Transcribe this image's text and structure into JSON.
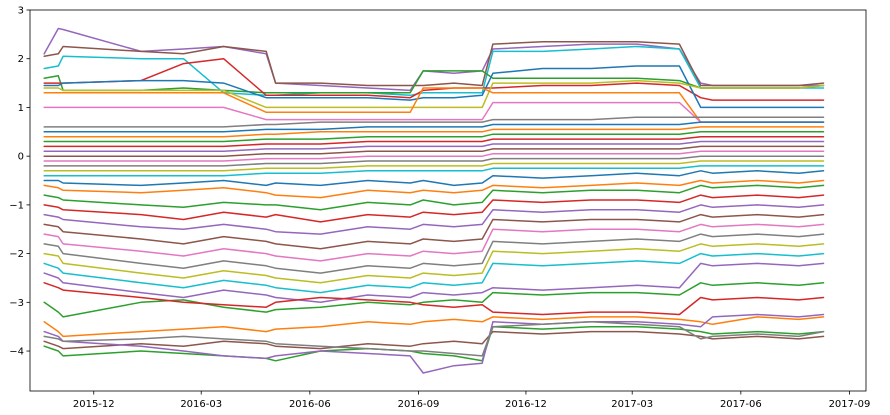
{
  "chart_data": {
    "type": "line",
    "title": "",
    "xlabel": "",
    "ylabel": "",
    "grid": false,
    "legend": "none",
    "x_range": [
      "2015-10-08",
      "2017-09-15"
    ],
    "y_range": [
      -4.82,
      3.0
    ],
    "x_ticks": [
      {
        "date": "2015-12-01",
        "label": "2015-12"
      },
      {
        "date": "2016-03-01",
        "label": "2016-03"
      },
      {
        "date": "2016-06-01",
        "label": "2016-06"
      },
      {
        "date": "2016-09-01",
        "label": "2016-09"
      },
      {
        "date": "2016-12-01",
        "label": "2016-12"
      },
      {
        "date": "2017-03-01",
        "label": "2017-03"
      },
      {
        "date": "2017-06-01",
        "label": "2017-06"
      },
      {
        "date": "2017-09-01",
        "label": "2017-09"
      }
    ],
    "y_ticks": [
      {
        "value": 3,
        "label": "3"
      },
      {
        "value": 2,
        "label": "2"
      },
      {
        "value": 1,
        "label": "1"
      },
      {
        "value": 0,
        "label": "0"
      },
      {
        "value": -1,
        "label": "−1"
      },
      {
        "value": -2,
        "label": "−2"
      },
      {
        "value": -3,
        "label": "−3"
      },
      {
        "value": -4,
        "label": "−4"
      }
    ],
    "x": [
      "2015-10-20",
      "2015-11-01",
      "2015-11-05",
      "2016-01-10",
      "2016-02-15",
      "2016-03-20",
      "2016-04-25",
      "2016-05-03",
      "2016-06-10",
      "2016-07-20",
      "2016-08-25",
      "2016-09-05",
      "2016-10-01",
      "2016-10-25",
      "2016-11-03",
      "2016-12-15",
      "2017-01-25",
      "2017-03-05",
      "2017-04-10",
      "2017-04-28",
      "2017-05-08",
      "2017-06-15",
      "2017-07-20",
      "2017-08-10"
    ],
    "series": [
      {
        "color": "#9467bd",
        "values": [
          2.1,
          2.62,
          2.6,
          2.15,
          2.2,
          2.25,
          2.1,
          1.5,
          1.45,
          1.4,
          1.35,
          1.75,
          1.7,
          1.75,
          2.2,
          2.25,
          2.3,
          2.3,
          2.2,
          1.5,
          1.45,
          1.45,
          1.45,
          1.45
        ]
      },
      {
        "color": "#8c564b",
        "values": [
          2.05,
          2.1,
          2.25,
          2.15,
          2.1,
          2.25,
          2.15,
          1.5,
          1.5,
          1.45,
          1.45,
          1.45,
          1.5,
          1.45,
          2.3,
          2.35,
          2.35,
          2.35,
          2.3,
          1.45,
          1.45,
          1.45,
          1.45,
          1.5
        ]
      },
      {
        "color": "#17becf",
        "values": [
          1.8,
          1.85,
          2.05,
          2.0,
          2.0,
          1.3,
          1.25,
          1.25,
          1.3,
          1.3,
          1.25,
          1.3,
          1.3,
          1.3,
          2.15,
          2.15,
          2.2,
          2.25,
          2.2,
          1.4,
          1.4,
          1.4,
          1.4,
          1.4
        ]
      },
      {
        "color": "#2ca02c",
        "values": [
          1.6,
          1.65,
          1.35,
          1.35,
          1.4,
          1.35,
          1.3,
          1.3,
          1.3,
          1.3,
          1.3,
          1.75,
          1.75,
          1.75,
          1.6,
          1.6,
          1.6,
          1.6,
          1.55,
          1.4,
          1.4,
          1.4,
          1.4,
          1.45
        ]
      },
      {
        "color": "#d62728",
        "values": [
          1.5,
          1.5,
          1.5,
          1.55,
          1.9,
          2.0,
          1.25,
          1.25,
          1.25,
          1.25,
          1.2,
          1.35,
          1.4,
          1.4,
          1.4,
          1.45,
          1.45,
          1.5,
          1.45,
          1.2,
          1.15,
          1.15,
          1.15,
          1.15
        ]
      },
      {
        "color": "#1f77b4",
        "values": [
          1.45,
          1.45,
          1.5,
          1.55,
          1.55,
          1.5,
          1.2,
          1.2,
          1.2,
          1.2,
          1.15,
          1.2,
          1.2,
          1.25,
          1.7,
          1.8,
          1.8,
          1.85,
          1.85,
          1.0,
          1.0,
          1.0,
          1.0,
          1.0
        ]
      },
      {
        "color": "#bcbd22",
        "values": [
          1.4,
          1.4,
          1.35,
          1.35,
          1.35,
          1.35,
          1.0,
          1.0,
          1.0,
          1.0,
          1.0,
          1.0,
          1.0,
          1.0,
          1.5,
          1.5,
          1.5,
          1.55,
          1.5,
          1.4,
          1.4,
          1.4,
          1.4,
          1.45
        ]
      },
      {
        "color": "#ff7f0e",
        "values": [
          1.3,
          1.3,
          1.3,
          1.3,
          1.3,
          1.3,
          0.9,
          0.9,
          0.9,
          0.9,
          0.9,
          1.4,
          1.4,
          1.4,
          1.3,
          1.3,
          1.3,
          1.3,
          1.3,
          0.7,
          0.7,
          0.7,
          0.7,
          0.7
        ]
      },
      {
        "color": "#e377c2",
        "values": [
          1.0,
          1.0,
          1.0,
          1.0,
          1.0,
          1.0,
          0.75,
          0.75,
          0.75,
          0.75,
          0.75,
          0.75,
          0.75,
          0.75,
          1.1,
          1.1,
          1.1,
          1.1,
          1.1,
          0.7,
          0.7,
          0.7,
          0.7,
          0.7
        ]
      },
      {
        "color": "#7f7f7f",
        "values": [
          0.6,
          0.6,
          0.6,
          0.6,
          0.6,
          0.6,
          0.65,
          0.65,
          0.7,
          0.7,
          0.7,
          0.7,
          0.7,
          0.7,
          0.75,
          0.75,
          0.75,
          0.8,
          0.8,
          0.8,
          0.8,
          0.8,
          0.8,
          0.8
        ]
      },
      {
        "color": "#1f77b4",
        "values": [
          0.5,
          0.5,
          0.5,
          0.5,
          0.5,
          0.5,
          0.55,
          0.55,
          0.55,
          0.6,
          0.6,
          0.6,
          0.6,
          0.6,
          0.65,
          0.65,
          0.65,
          0.65,
          0.65,
          0.7,
          0.7,
          0.7,
          0.7,
          0.7
        ]
      },
      {
        "color": "#ff7f0e",
        "values": [
          0.4,
          0.4,
          0.4,
          0.4,
          0.4,
          0.4,
          0.45,
          0.45,
          0.5,
          0.5,
          0.5,
          0.5,
          0.5,
          0.5,
          0.55,
          0.55,
          0.55,
          0.55,
          0.55,
          0.6,
          0.6,
          0.6,
          0.6,
          0.6
        ]
      },
      {
        "color": "#2ca02c",
        "values": [
          0.3,
          0.3,
          0.3,
          0.3,
          0.3,
          0.3,
          0.35,
          0.35,
          0.35,
          0.4,
          0.4,
          0.4,
          0.4,
          0.4,
          0.45,
          0.45,
          0.45,
          0.45,
          0.45,
          0.5,
          0.5,
          0.5,
          0.5,
          0.5
        ]
      },
      {
        "color": "#d62728",
        "values": [
          0.2,
          0.2,
          0.2,
          0.2,
          0.2,
          0.2,
          0.25,
          0.25,
          0.25,
          0.3,
          0.3,
          0.3,
          0.3,
          0.3,
          0.35,
          0.35,
          0.35,
          0.35,
          0.35,
          0.4,
          0.4,
          0.4,
          0.4,
          0.4
        ]
      },
      {
        "color": "#9467bd",
        "values": [
          0.1,
          0.1,
          0.1,
          0.1,
          0.1,
          0.1,
          0.15,
          0.15,
          0.15,
          0.2,
          0.2,
          0.2,
          0.2,
          0.2,
          0.25,
          0.25,
          0.25,
          0.25,
          0.25,
          0.3,
          0.3,
          0.3,
          0.3,
          0.3
        ]
      },
      {
        "color": "#8c564b",
        "values": [
          0.0,
          0.0,
          0.0,
          0.0,
          0.0,
          0.0,
          0.05,
          0.05,
          0.05,
          0.1,
          0.1,
          0.1,
          0.1,
          0.1,
          0.15,
          0.15,
          0.15,
          0.15,
          0.15,
          0.2,
          0.2,
          0.2,
          0.2,
          0.2
        ]
      },
      {
        "color": "#e377c2",
        "values": [
          -0.1,
          -0.1,
          -0.1,
          -0.1,
          -0.1,
          -0.1,
          -0.05,
          -0.05,
          -0.05,
          0.0,
          0.0,
          0.0,
          0.0,
          0.0,
          0.05,
          0.05,
          0.05,
          0.05,
          0.05,
          0.1,
          0.1,
          0.1,
          0.1,
          0.1
        ]
      },
      {
        "color": "#7f7f7f",
        "values": [
          -0.2,
          -0.2,
          -0.2,
          -0.2,
          -0.2,
          -0.2,
          -0.15,
          -0.15,
          -0.15,
          -0.1,
          -0.1,
          -0.1,
          -0.1,
          -0.1,
          -0.05,
          -0.05,
          -0.05,
          -0.05,
          -0.05,
          0.0,
          0.0,
          0.0,
          0.0,
          0.0
        ]
      },
      {
        "color": "#bcbd22",
        "values": [
          -0.3,
          -0.3,
          -0.3,
          -0.3,
          -0.3,
          -0.3,
          -0.25,
          -0.25,
          -0.25,
          -0.2,
          -0.2,
          -0.2,
          -0.2,
          -0.2,
          -0.15,
          -0.15,
          -0.15,
          -0.15,
          -0.15,
          -0.1,
          -0.1,
          -0.1,
          -0.1,
          -0.1
        ]
      },
      {
        "color": "#17becf",
        "values": [
          -0.4,
          -0.4,
          -0.4,
          -0.4,
          -0.4,
          -0.4,
          -0.35,
          -0.35,
          -0.35,
          -0.3,
          -0.3,
          -0.3,
          -0.3,
          -0.3,
          -0.25,
          -0.25,
          -0.25,
          -0.25,
          -0.25,
          -0.2,
          -0.2,
          -0.2,
          -0.2,
          -0.2
        ]
      },
      {
        "color": "#1f77b4",
        "values": [
          -0.5,
          -0.5,
          -0.55,
          -0.6,
          -0.55,
          -0.5,
          -0.6,
          -0.55,
          -0.6,
          -0.5,
          -0.55,
          -0.5,
          -0.6,
          -0.55,
          -0.4,
          -0.45,
          -0.4,
          -0.35,
          -0.4,
          -0.3,
          -0.35,
          -0.3,
          -0.35,
          -0.3
        ]
      },
      {
        "color": "#ff7f0e",
        "values": [
          -0.6,
          -0.65,
          -0.7,
          -0.75,
          -0.7,
          -0.65,
          -0.75,
          -0.8,
          -0.85,
          -0.7,
          -0.75,
          -0.7,
          -0.75,
          -0.7,
          -0.6,
          -0.65,
          -0.6,
          -0.55,
          -0.6,
          -0.5,
          -0.55,
          -0.5,
          -0.55,
          -0.5
        ]
      },
      {
        "color": "#2ca02c",
        "values": [
          -0.8,
          -0.85,
          -0.9,
          -1.0,
          -1.05,
          -0.95,
          -1.0,
          -1.0,
          -1.1,
          -0.95,
          -1.0,
          -0.9,
          -1.0,
          -0.95,
          -0.7,
          -0.75,
          -0.7,
          -0.7,
          -0.75,
          -0.6,
          -0.65,
          -0.6,
          -0.65,
          -0.6
        ]
      },
      {
        "color": "#d62728",
        "values": [
          -1.0,
          -1.05,
          -1.1,
          -1.2,
          -1.3,
          -1.15,
          -1.25,
          -1.2,
          -1.35,
          -1.2,
          -1.25,
          -1.15,
          -1.2,
          -1.15,
          -0.9,
          -0.95,
          -0.9,
          -0.9,
          -0.95,
          -0.8,
          -0.85,
          -0.8,
          -0.85,
          -0.8
        ]
      },
      {
        "color": "#9467bd",
        "values": [
          -1.2,
          -1.25,
          -1.3,
          -1.45,
          -1.5,
          -1.4,
          -1.5,
          -1.55,
          -1.6,
          -1.45,
          -1.5,
          -1.4,
          -1.45,
          -1.4,
          -1.1,
          -1.15,
          -1.1,
          -1.1,
          -1.15,
          -1.0,
          -1.05,
          -1.0,
          -1.05,
          -1.0
        ]
      },
      {
        "color": "#8c564b",
        "values": [
          -1.4,
          -1.45,
          -1.55,
          -1.7,
          -1.8,
          -1.65,
          -1.75,
          -1.8,
          -1.9,
          -1.75,
          -1.8,
          -1.7,
          -1.75,
          -1.7,
          -1.3,
          -1.35,
          -1.3,
          -1.3,
          -1.35,
          -1.2,
          -1.25,
          -1.2,
          -1.25,
          -1.2
        ]
      },
      {
        "color": "#e377c2",
        "values": [
          -1.6,
          -1.65,
          -1.8,
          -1.95,
          -2.05,
          -1.9,
          -2.0,
          -2.05,
          -2.15,
          -2.0,
          -2.05,
          -1.95,
          -2.0,
          -1.95,
          -1.5,
          -1.55,
          -1.5,
          -1.5,
          -1.55,
          -1.4,
          -1.45,
          -1.4,
          -1.45,
          -1.4
        ]
      },
      {
        "color": "#7f7f7f",
        "values": [
          -1.8,
          -1.85,
          -2.0,
          -2.2,
          -2.3,
          -2.15,
          -2.25,
          -2.3,
          -2.4,
          -2.25,
          -2.3,
          -2.2,
          -2.25,
          -2.2,
          -1.75,
          -1.8,
          -1.75,
          -1.7,
          -1.75,
          -1.6,
          -1.65,
          -1.6,
          -1.65,
          -1.6
        ]
      },
      {
        "color": "#bcbd22",
        "values": [
          -2.0,
          -2.05,
          -2.2,
          -2.4,
          -2.5,
          -2.35,
          -2.45,
          -2.5,
          -2.6,
          -2.45,
          -2.5,
          -2.4,
          -2.45,
          -2.4,
          -1.95,
          -2.0,
          -1.95,
          -1.9,
          -1.95,
          -1.8,
          -1.85,
          -1.8,
          -1.85,
          -1.8
        ]
      },
      {
        "color": "#17becf",
        "values": [
          -2.2,
          -2.3,
          -2.4,
          -2.6,
          -2.7,
          -2.55,
          -2.65,
          -2.7,
          -2.8,
          -2.65,
          -2.7,
          -2.6,
          -2.65,
          -2.6,
          -2.2,
          -2.25,
          -2.2,
          -2.15,
          -2.2,
          -2.0,
          -2.05,
          -2.0,
          -2.05,
          -2.0
        ]
      },
      {
        "color": "#9467bd",
        "values": [
          -2.4,
          -2.5,
          -2.6,
          -2.8,
          -2.9,
          -2.75,
          -2.85,
          -2.9,
          -3.0,
          -2.85,
          -2.9,
          -2.8,
          -2.85,
          -2.8,
          -2.7,
          -2.75,
          -2.7,
          -2.65,
          -2.7,
          -2.2,
          -2.25,
          -2.2,
          -2.25,
          -2.2
        ]
      },
      {
        "color": "#2ca02c",
        "values": [
          -3.0,
          -3.2,
          -3.3,
          -3.0,
          -2.95,
          -3.1,
          -3.2,
          -3.15,
          -3.1,
          -3.0,
          -3.05,
          -3.0,
          -2.95,
          -3.0,
          -2.8,
          -2.85,
          -2.8,
          -2.8,
          -2.85,
          -2.6,
          -2.65,
          -2.6,
          -2.65,
          -2.6
        ]
      },
      {
        "color": "#d62728",
        "values": [
          -2.6,
          -2.7,
          -2.75,
          -2.9,
          -3.0,
          -3.05,
          -3.1,
          -3.0,
          -2.9,
          -2.95,
          -3.0,
          -3.05,
          -3.1,
          -3.05,
          -3.2,
          -3.25,
          -3.2,
          -3.2,
          -3.25,
          -2.9,
          -2.95,
          -2.9,
          -2.95,
          -2.9
        ]
      },
      {
        "color": "#ff7f0e",
        "values": [
          -3.4,
          -3.6,
          -3.7,
          -3.6,
          -3.55,
          -3.5,
          -3.6,
          -3.55,
          -3.5,
          -3.4,
          -3.45,
          -3.4,
          -3.35,
          -3.4,
          -3.3,
          -3.35,
          -3.3,
          -3.3,
          -3.35,
          -3.4,
          -3.45,
          -3.3,
          -3.35,
          -3.3
        ]
      },
      {
        "color": "#8c564b",
        "values": [
          -3.8,
          -3.9,
          -3.95,
          -3.85,
          -3.9,
          -3.8,
          -3.85,
          -3.9,
          -3.95,
          -3.85,
          -3.9,
          -3.85,
          -3.8,
          -3.85,
          -3.6,
          -3.65,
          -3.6,
          -3.6,
          -3.65,
          -3.7,
          -3.75,
          -3.7,
          -3.75,
          -3.7
        ]
      },
      {
        "color": "#2ca02c",
        "values": [
          -3.9,
          -4.0,
          -4.1,
          -4.0,
          -4.05,
          -4.1,
          -4.15,
          -4.2,
          -4.0,
          -3.95,
          -4.0,
          -4.05,
          -4.1,
          -4.2,
          -3.5,
          -3.55,
          -3.5,
          -3.5,
          -3.55,
          -3.6,
          -3.65,
          -3.6,
          -3.65,
          -3.6
        ]
      },
      {
        "color": "#9467bd",
        "values": [
          -3.6,
          -3.7,
          -3.8,
          -3.9,
          -4.0,
          -4.1,
          -4.15,
          -4.1,
          -4.0,
          -4.05,
          -4.1,
          -4.45,
          -4.3,
          -4.25,
          -3.4,
          -3.45,
          -3.4,
          -3.4,
          -3.45,
          -3.5,
          -3.3,
          -3.25,
          -3.3,
          -3.25
        ]
      },
      {
        "color": "#7f7f7f",
        "values": [
          -3.7,
          -3.75,
          -3.8,
          -3.75,
          -3.7,
          -3.75,
          -3.8,
          -3.85,
          -3.9,
          -3.95,
          -4.0,
          -4.0,
          -4.05,
          -4.1,
          -3.5,
          -3.45,
          -3.4,
          -3.45,
          -3.5,
          -3.75,
          -3.7,
          -3.65,
          -3.7,
          -3.6
        ]
      }
    ]
  }
}
